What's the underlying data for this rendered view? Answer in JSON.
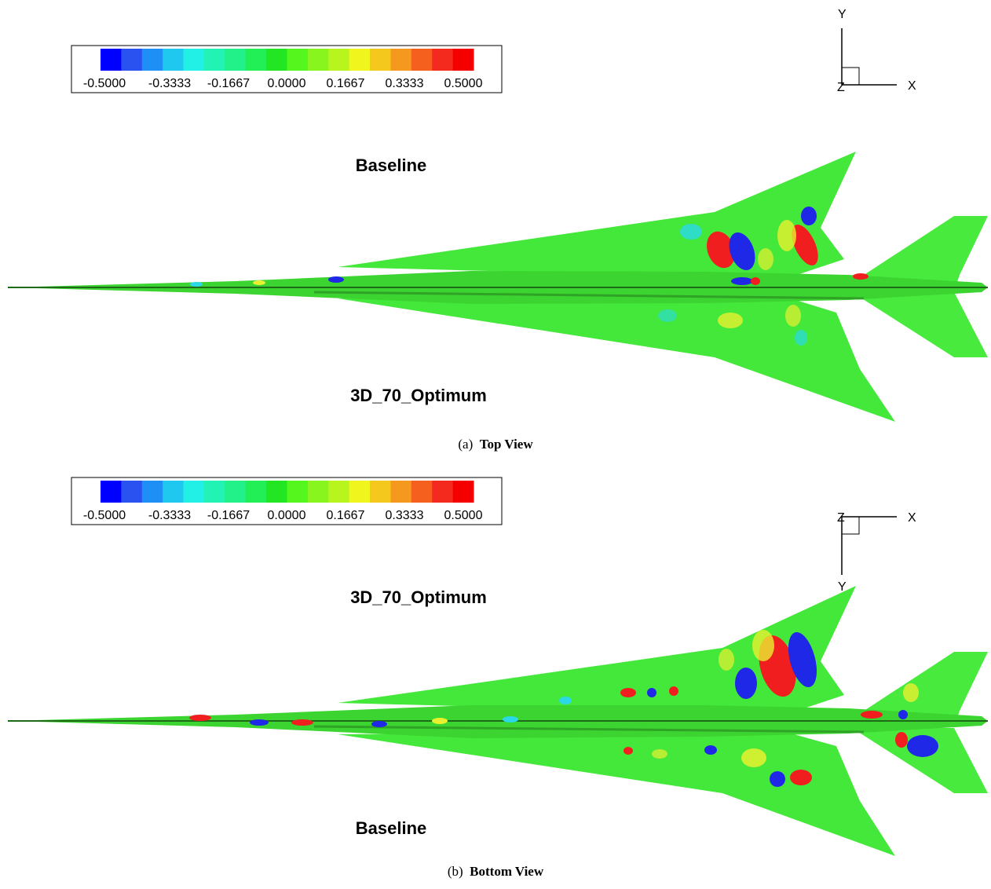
{
  "colormap": {
    "colors": [
      "#0000ff",
      "#2a52f0",
      "#1e8ff5",
      "#1ec8ee",
      "#22f0e6",
      "#22f2b4",
      "#22f088",
      "#22ee55",
      "#22e622",
      "#55f51e",
      "#88f51e",
      "#b8f51e",
      "#f0f51e",
      "#f5c81e",
      "#f5981e",
      "#f5601e",
      "#f52a1e",
      "#f50000"
    ],
    "tick_labels": [
      "-0.5000",
      "-0.3333",
      "-0.1667",
      "0.0000",
      "0.1667",
      "0.3333",
      "0.5000"
    ],
    "range": [
      -0.5,
      0.5
    ]
  },
  "panel_a": {
    "label_upper": "Baseline",
    "label_lower": "3D_70_Optimum",
    "caption_letter": "(a)",
    "caption_title": "Top View",
    "axes": {
      "vertical": "Y",
      "horizontal": "X",
      "origin": "Z"
    }
  },
  "panel_b": {
    "label_upper": "3D_70_Optimum",
    "label_lower": "Baseline",
    "caption_letter": "(b)",
    "caption_title": "Bottom View",
    "axes": {
      "vertical": "Y",
      "horizontal": "X",
      "origin": "Z"
    }
  },
  "colors": {
    "surface": "#44e83a",
    "surface_dark": "#2fb52a",
    "fuselage": "#2a8f22",
    "red": "#f01e1e",
    "blue": "#1e28e6",
    "yellow": "#e8f030",
    "cyan": "#2ad8e8"
  }
}
